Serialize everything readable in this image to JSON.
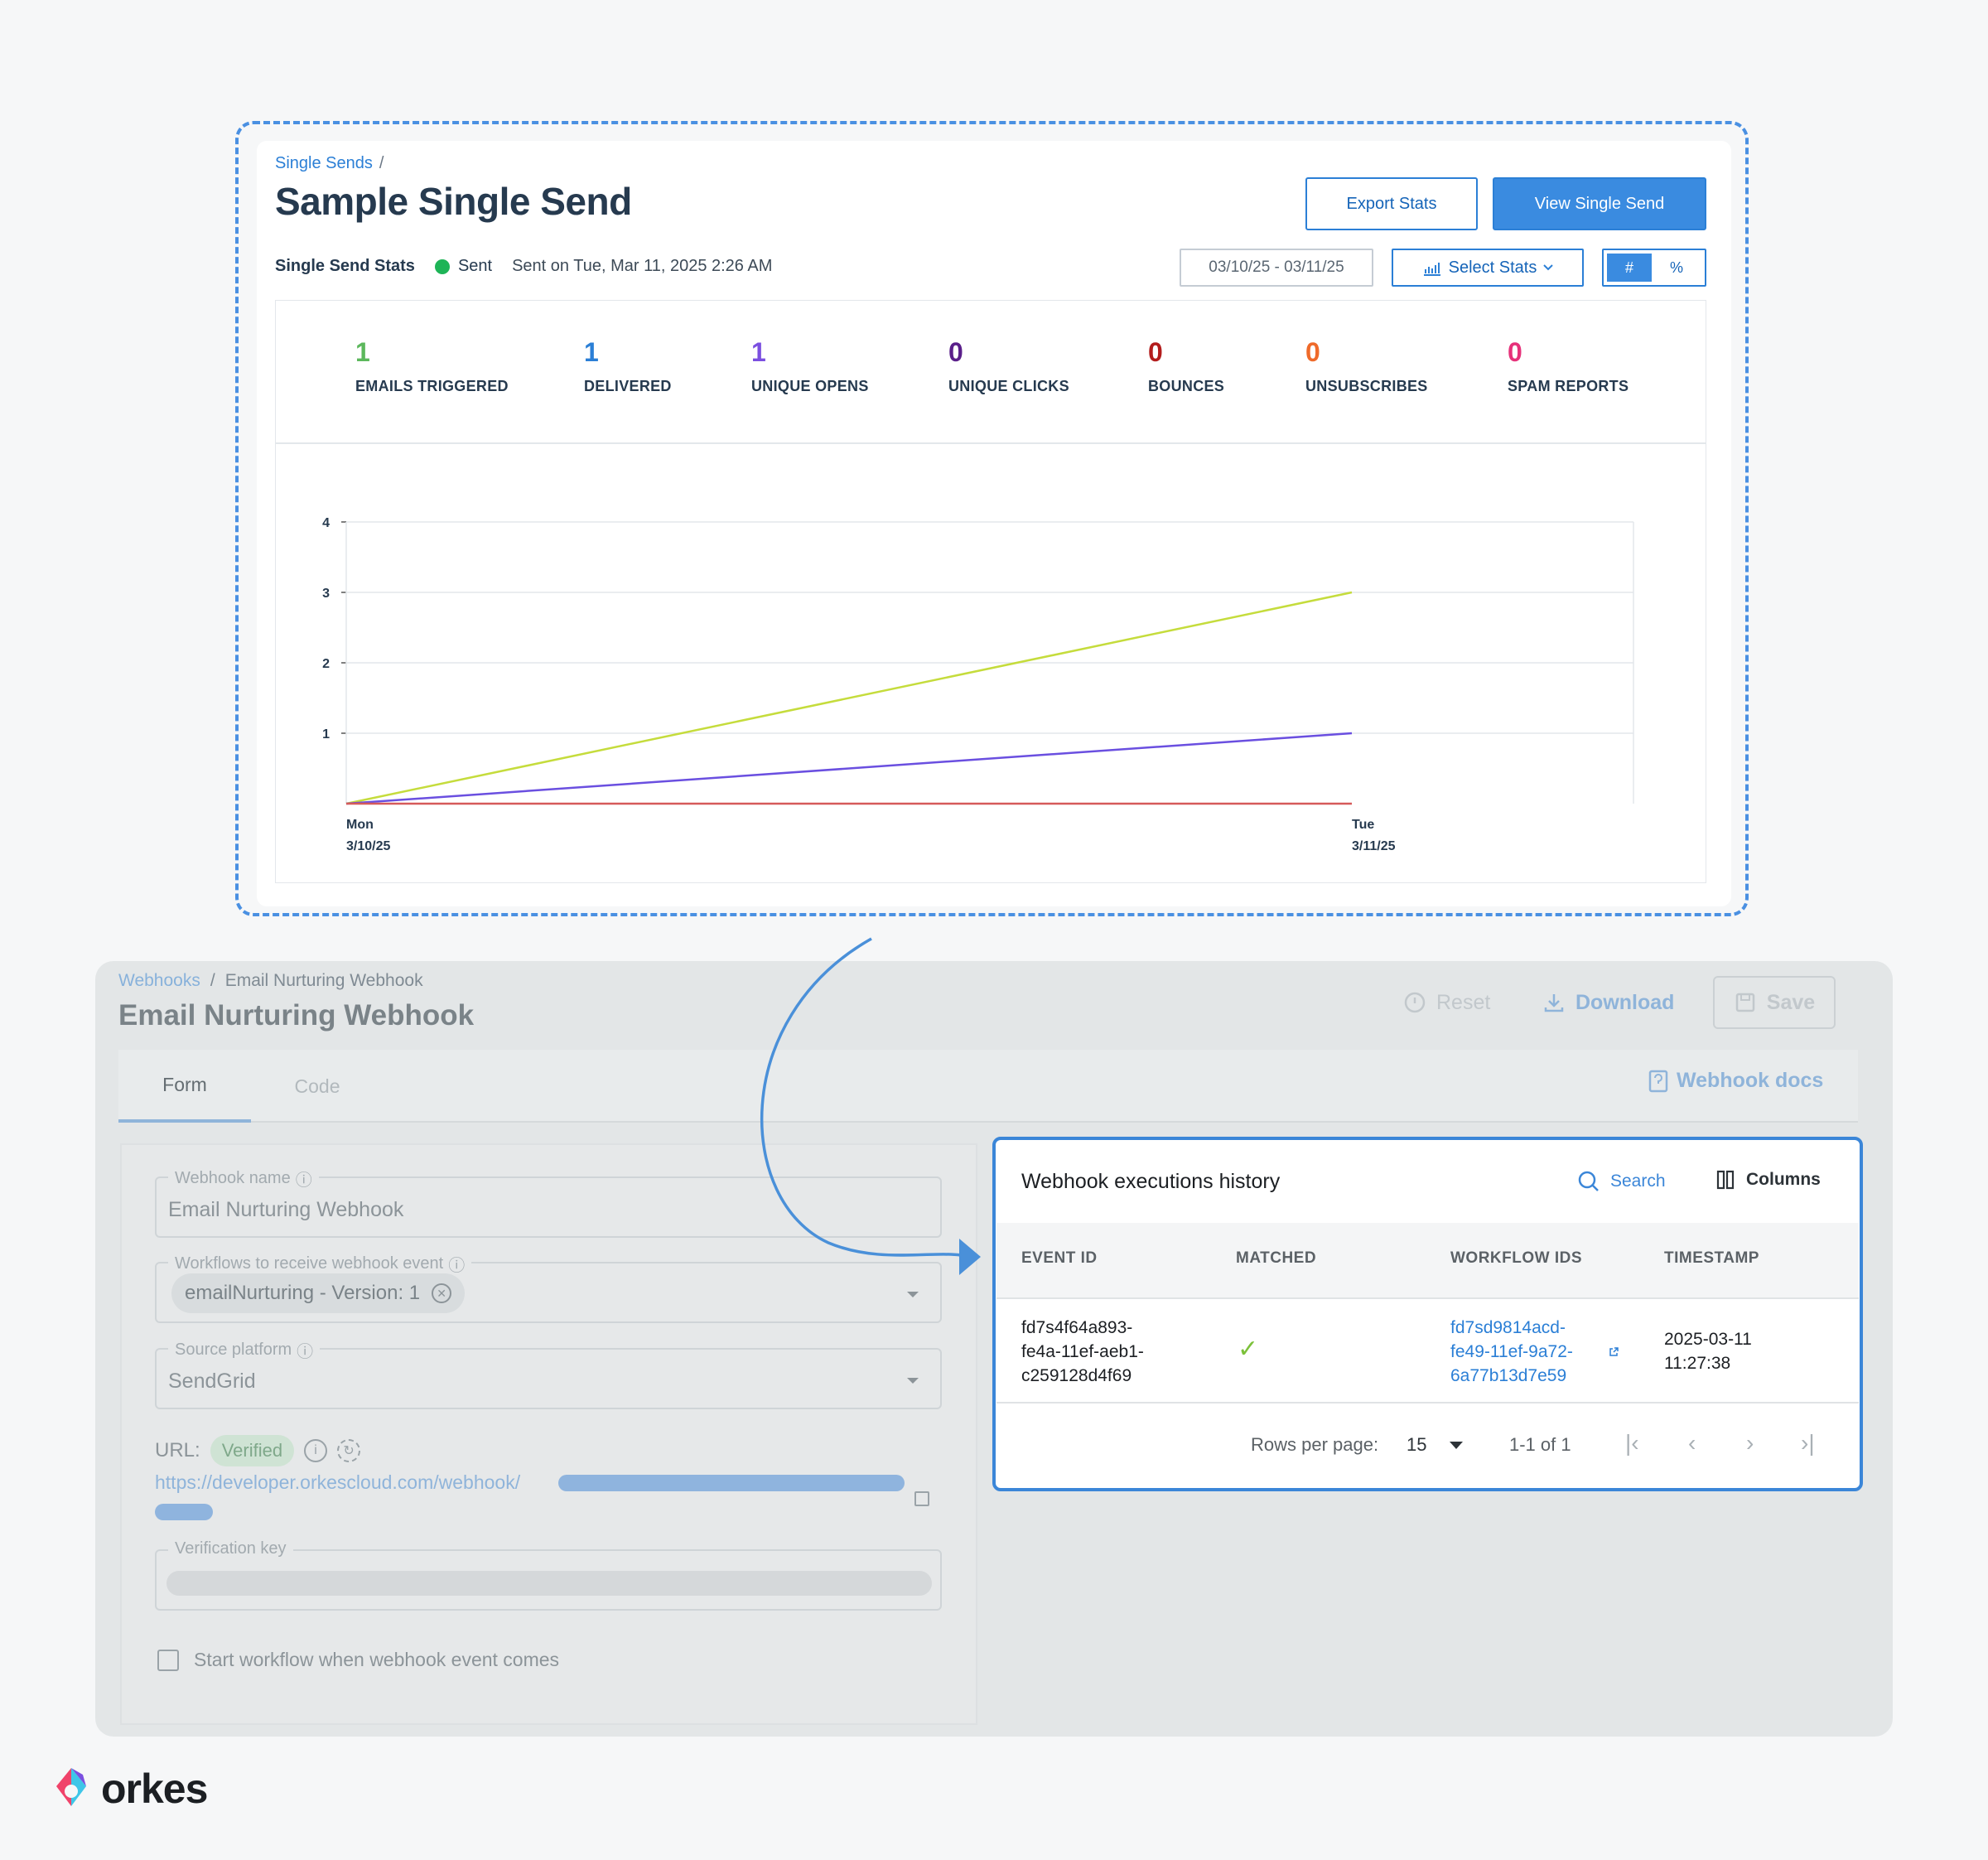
{
  "sendgrid": {
    "breadcrumb_link": "Single Sends",
    "breadcrumb_sep": "/",
    "title": "Sample Single Send",
    "export_button": "Export Stats",
    "view_button": "View Single Send",
    "stats_label": "Single Send Stats",
    "status": "Sent",
    "status_color": "#1eb457",
    "sent_on": "Sent on Tue, Mar 11, 2025 2:26 AM",
    "date_range": "03/10/25 - 03/11/25",
    "select_stats": "Select Stats",
    "toggle_hash": "#",
    "toggle_pct": "%",
    "metrics": [
      {
        "value": "1",
        "label": "EMAILS TRIGGERED",
        "color": "#5cb85c"
      },
      {
        "value": "1",
        "label": "DELIVERED",
        "color": "#2b7fd6"
      },
      {
        "value": "1",
        "label": "UNIQUE OPENS",
        "color": "#7b4fe0"
      },
      {
        "value": "0",
        "label": "UNIQUE CLICKS",
        "color": "#5a1f8a"
      },
      {
        "value": "0",
        "label": "BOUNCES",
        "color": "#b31d1d"
      },
      {
        "value": "0",
        "label": "UNSUBSCRIBES",
        "color": "#ef6a2a"
      },
      {
        "value": "0",
        "label": "SPAM REPORTS",
        "color": "#e6317a"
      }
    ]
  },
  "chart_data": {
    "type": "line",
    "title": "",
    "xlabel": "",
    "ylabel": "",
    "x": [
      [
        "Mon",
        "3/10/25"
      ],
      [
        "Tue",
        "3/11/25"
      ]
    ],
    "yticks": [
      "1",
      "2",
      "3",
      "4"
    ],
    "ylim": [
      0,
      4
    ],
    "grid": true,
    "series": [
      {
        "values": [
          0,
          3
        ],
        "color": "#c5dc3c"
      },
      {
        "values": [
          0,
          1
        ],
        "color": "#6a4fe0"
      },
      {
        "values": [
          0,
          0
        ],
        "color": "#d65a5a"
      }
    ]
  },
  "orkes": {
    "breadcrumb_link": "Webhooks",
    "breadcrumb_sep": "/",
    "breadcrumb_current": "Email Nurturing Webhook",
    "title": "Email Nurturing Webhook",
    "reset": "Reset",
    "download": "Download",
    "save": "Save",
    "tabs": [
      "Form",
      "Code"
    ],
    "webhook_docs": "Webhook docs",
    "form": {
      "name_label": "Webhook name",
      "name_value": "Email Nurturing Webhook",
      "workflows_label": "Workflows to receive webhook event",
      "workflow_chip": "emailNurturing - Version: 1",
      "source_label": "Source platform",
      "source_value": "SendGrid",
      "url_label": "URL:",
      "verified": "Verified",
      "url_value": "https://developer.orkescloud.com/webhook/",
      "verification_label": "Verification key",
      "checkbox_label": "Start workflow when webhook event comes"
    },
    "executions": {
      "title": "Webhook executions history",
      "search": "Search",
      "columns": "Columns",
      "headers": [
        "EVENT ID",
        "MATCHED",
        "WORKFLOW IDS",
        "TIMESTAMP"
      ],
      "row": {
        "event_id": [
          "fd7s4f64a893-",
          "fe4a-11ef-aeb1-",
          "c259128d4f69"
        ],
        "matched": "✓",
        "workflow_id": [
          "fd7sd9814acd-",
          "fe49-11ef-9a72-",
          "6a77b13d7e59"
        ],
        "timestamp": [
          "2025-03-11",
          "11:27:38"
        ]
      },
      "rows_per_page_label": "Rows per page:",
      "rows_per_page": "15",
      "range": "1-1 of 1"
    }
  },
  "brand": {
    "logo_text": "orkes"
  }
}
